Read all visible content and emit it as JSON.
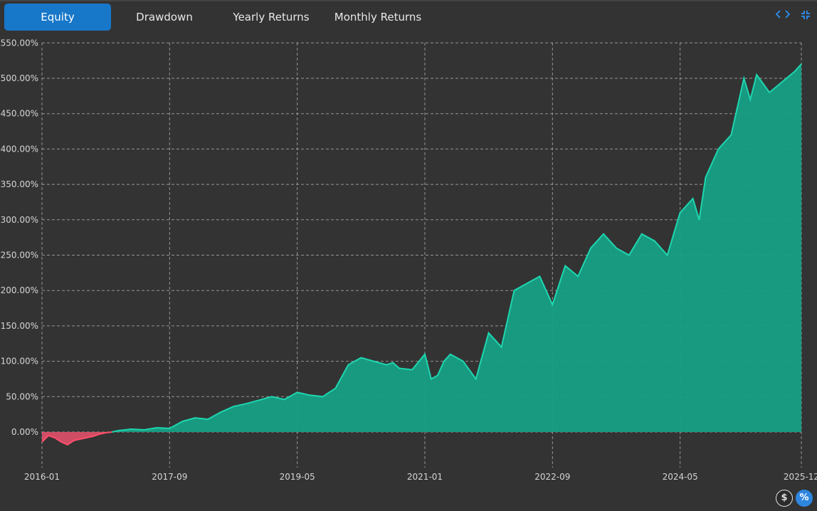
{
  "tabs": {
    "equity": "Equity",
    "drawdown": "Drawdown",
    "yearly": "Yearly Returns",
    "monthly": "Monthly Returns"
  },
  "icons": {
    "expand": "code-brackets-icon",
    "collapse": "compress-icon",
    "dollar": "dollar-icon",
    "percent": "percent-icon"
  },
  "buttons": {
    "dollar_label": "$",
    "percent_label": "%"
  },
  "colors": {
    "positive_line": "#1ed6b0",
    "positive_fill": "#16a085",
    "negative_line": "#ff4f6b",
    "negative_fill": "#e0506a",
    "accent": "#1777c9"
  },
  "chart_data": {
    "type": "area",
    "title": "",
    "xlabel": "",
    "ylabel": "",
    "x_ticks": [
      "2016-01",
      "2017-09",
      "2019-05",
      "2021-01",
      "2022-09",
      "2024-05",
      "2025-12"
    ],
    "y_ticks": [
      "0.00%",
      "50.00%",
      "100.00%",
      "150.00%",
      "200.00%",
      "250.00%",
      "300.00%",
      "350.00%",
      "400.00%",
      "450.00%",
      "500.00%",
      "550.00%"
    ],
    "ylim": [
      -50,
      550
    ],
    "grid": true,
    "series": [
      {
        "x": [
          "2016-01",
          "2016-02",
          "2016-03",
          "2016-04",
          "2016-05",
          "2016-06",
          "2016-07",
          "2016-08",
          "2016-09",
          "2016-10",
          "2016-11",
          "2016-12",
          "2017-01",
          "2017-03",
          "2017-05",
          "2017-07",
          "2017-09",
          "2017-11",
          "2018-01",
          "2018-03",
          "2018-05",
          "2018-07",
          "2018-09",
          "2018-11",
          "2019-01",
          "2019-03",
          "2019-05",
          "2019-07",
          "2019-09",
          "2019-11",
          "2020-01",
          "2020-03",
          "2020-05",
          "2020-07",
          "2020-08",
          "2020-09",
          "2020-11",
          "2021-01",
          "2021-02",
          "2021-03",
          "2021-04",
          "2021-05",
          "2021-07",
          "2021-09",
          "2021-11",
          "2022-01",
          "2022-03",
          "2022-05",
          "2022-07",
          "2022-09",
          "2022-11",
          "2023-01",
          "2023-03",
          "2023-05",
          "2023-07",
          "2023-09",
          "2023-11",
          "2024-01",
          "2024-03",
          "2024-05",
          "2024-07",
          "2024-08",
          "2024-09",
          "2024-11",
          "2025-01",
          "2025-03",
          "2025-04",
          "2025-05",
          "2025-07",
          "2025-09",
          "2025-11",
          "2025-12"
        ],
        "y": [
          -14,
          -5,
          -8,
          -14,
          -18,
          -12,
          -10,
          -8,
          -6,
          -3,
          -1,
          0,
          2,
          4,
          3,
          6,
          5,
          15,
          20,
          18,
          28,
          36,
          40,
          45,
          50,
          46,
          56,
          52,
          50,
          62,
          95,
          105,
          100,
          95,
          98,
          90,
          88,
          110,
          75,
          80,
          100,
          110,
          100,
          75,
          140,
          120,
          200,
          210,
          220,
          180,
          235,
          220,
          260,
          280,
          260,
          250,
          280,
          270,
          250,
          310,
          330,
          300,
          360,
          400,
          420,
          500,
          470,
          505,
          480,
          495,
          510,
          520
        ]
      }
    ]
  }
}
